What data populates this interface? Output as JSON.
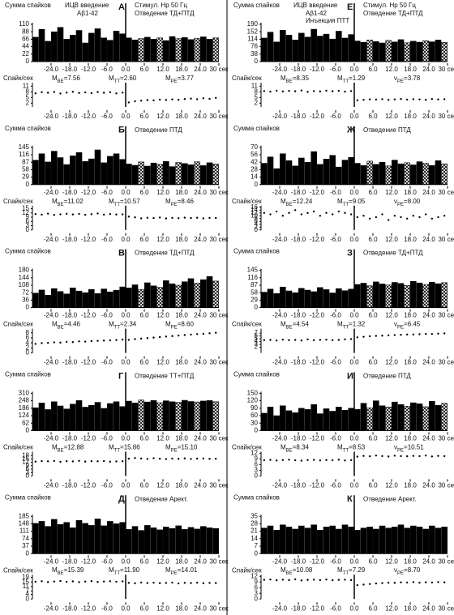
{
  "time_axis": {
    "xlim": [
      -30,
      30
    ],
    "bins": [
      -30,
      -28,
      -26,
      -24,
      -22,
      -20,
      -18,
      -16,
      -14,
      -12,
      -10,
      -8,
      -6,
      -4,
      -2,
      0,
      2,
      4,
      6,
      8,
      10,
      12,
      14,
      16,
      18,
      20,
      22,
      24,
      26,
      28,
      30
    ],
    "points": [
      -29,
      -27,
      -25,
      -23,
      -21,
      -19,
      -17,
      -15,
      -13,
      -11,
      -9,
      -7,
      -5,
      -3,
      -1,
      1,
      3,
      5,
      7,
      9,
      11,
      13,
      15,
      17,
      19,
      21,
      23,
      25,
      27,
      29
    ],
    "xticks": [
      {
        "value": -24,
        "label": "-24.0"
      },
      {
        "value": -18,
        "label": "-18.0"
      },
      {
        "value": -12,
        "label": "-12.0"
      },
      {
        "value": -6,
        "label": "-6.0"
      },
      {
        "value": 0,
        "label": "0.0"
      },
      {
        "value": 6,
        "label": "6.0"
      },
      {
        "value": 12,
        "label": "12.0"
      },
      {
        "value": 18,
        "label": "18.0"
      },
      {
        "value": 24,
        "label": "24.0"
      },
      {
        "value": 30,
        "label": "30 сек"
      }
    ]
  },
  "chart_data": [
    {
      "type": "bar",
      "letter": "А",
      "ylabel": "Сумма спайков",
      "title": "Отведение ТД+ПТД",
      "notes": [
        "ИЦВ введение",
        "Аβ1-42",
        "Стимул. Нр 50 Гц"
      ],
      "color": "#000000",
      "hatch_after_zero": true,
      "ylim": [
        0,
        110
      ],
      "yticks": [
        0,
        22,
        44,
        66,
        88,
        110
      ],
      "values": [
        72,
        95,
        60,
        88,
        101,
        66,
        78,
        92,
        55,
        84,
        97,
        70,
        63,
        90,
        82,
        70,
        64,
        68,
        72,
        66,
        70,
        62,
        74,
        68,
        71,
        65,
        69,
        73,
        66,
        70
      ],
      "rate": {
        "type": "scatter",
        "ylabel": "Спайк/сек",
        "ylim": [
          0,
          12
        ],
        "yticks": [
          2,
          5,
          8,
          11
        ],
        "stats": [
          {
            "name": "M",
            "sub": "BE",
            "text": "=7.56"
          },
          {
            "name": "M",
            "sub": "TT",
            "text": "=2.60"
          },
          {
            "name": "M",
            "sub": "PE",
            "text": "=3.77"
          }
        ],
        "values": [
          7.2,
          7.8,
          7.5,
          7.9,
          7.1,
          7.6,
          8.0,
          7.4,
          7.7,
          7.3,
          7.9,
          7.5,
          7.8,
          7.2,
          7.6,
          2.4,
          3.0,
          3.3,
          3.6,
          3.5,
          3.9,
          3.7,
          4.0,
          3.8,
          4.2,
          4.4,
          4.1,
          4.6,
          4.3,
          4.8
        ]
      }
    },
    {
      "type": "bar",
      "letter": "Б",
      "ylabel": "Сумма спайков",
      "title": "Отведение ПТД",
      "color": "#000000",
      "hatch_after_zero": true,
      "ylim": [
        0,
        145
      ],
      "yticks": [
        0,
        29,
        58,
        87,
        116,
        145
      ],
      "values": [
        95,
        120,
        88,
        130,
        105,
        78,
        112,
        125,
        90,
        100,
        135,
        85,
        110,
        120,
        98,
        80,
        75,
        88,
        72,
        84,
        79,
        90,
        70,
        86,
        82,
        77,
        89,
        74,
        85,
        80
      ],
      "rate": {
        "type": "scatter",
        "ylabel": "Спайк/сек",
        "ylim": [
          0,
          16
        ],
        "yticks": [
          0,
          3,
          6,
          9,
          12,
          15
        ],
        "stats": [
          {
            "name": "M",
            "sub": "BE",
            "text": "=11.02"
          },
          {
            "name": "M",
            "sub": "TT",
            "text": "=10.57"
          },
          {
            "name": "M",
            "sub": "PE",
            "text": "=8.46"
          }
        ],
        "values": [
          11.2,
          10.8,
          11.5,
          10.6,
          11.0,
          11.4,
          10.9,
          11.3,
          10.7,
          11.1,
          11.6,
          10.8,
          11.2,
          10.9,
          11.0,
          9.4,
          8.9,
          8.2,
          8.6,
          8.4,
          8.8,
          8.1,
          8.5,
          8.3,
          8.7,
          8.4,
          8.6,
          8.2,
          8.5,
          8.4
        ]
      }
    },
    {
      "type": "bar",
      "letter": "В",
      "ylabel": "Сумма спайков",
      "title": "Отведение ТД+ПТД",
      "color": "#000000",
      "hatch_after_zero": true,
      "ylim": [
        0,
        180
      ],
      "yticks": [
        0,
        36,
        72,
        108,
        144,
        180
      ],
      "values": [
        70,
        85,
        60,
        92,
        78,
        66,
        95,
        80,
        72,
        88,
        68,
        90,
        76,
        84,
        100,
        95,
        110,
        88,
        120,
        105,
        98,
        130,
        115,
        108,
        125,
        140,
        118,
        135,
        150,
        128
      ],
      "rate": {
        "type": "scatter",
        "ylabel": "Спайк/сек",
        "ylim": [
          0,
          9
        ],
        "yticks": [
          0,
          2,
          4,
          6,
          8
        ],
        "stats": [
          {
            "name": "M",
            "sub": "BE",
            "text": "=4.46"
          },
          {
            "name": "M",
            "sub": "TT",
            "text": "=2.34"
          },
          {
            "name": "M",
            "sub": "PE",
            "text": "=8.60"
          }
        ],
        "values": [
          3.6,
          3.9,
          4.0,
          4.2,
          4.1,
          4.4,
          4.3,
          4.6,
          4.5,
          4.7,
          4.8,
          4.9,
          5.0,
          5.1,
          5.3,
          5.2,
          5.5,
          5.7,
          5.9,
          6.1,
          6.3,
          6.5,
          6.7,
          6.9,
          7.1,
          7.3,
          7.5,
          7.6,
          7.8,
          8.0
        ]
      }
    },
    {
      "type": "bar",
      "letter": "Г",
      "ylabel": "Сумма спайков",
      "title": "Отведение ТТ+ПТД",
      "color": "#000000",
      "hatch_after_zero": true,
      "ylim": [
        0,
        310
      ],
      "yticks": [
        0,
        62,
        124,
        186,
        248,
        310
      ],
      "values": [
        190,
        230,
        175,
        240,
        205,
        180,
        220,
        250,
        195,
        210,
        235,
        185,
        225,
        240,
        200,
        245,
        230,
        255,
        238,
        250,
        232,
        248,
        240,
        235,
        252,
        242,
        238,
        246,
        250,
        240
      ],
      "rate": {
        "type": "scatter",
        "ylabel": "Спайк/сек",
        "ylim": [
          0,
          20
        ],
        "yticks": [
          0,
          3,
          6,
          9,
          12,
          15,
          18
        ],
        "stats": [
          {
            "name": "M",
            "sub": "BE",
            "text": "=12.88"
          },
          {
            "name": "M",
            "sub": "TT",
            "text": "=15.86"
          },
          {
            "name": "M",
            "sub": "PE",
            "text": "=15.10"
          }
        ],
        "values": [
          12.6,
          13.1,
          12.9,
          13.2,
          12.5,
          13.0,
          12.8,
          13.3,
          12.7,
          13.0,
          12.9,
          13.1,
          12.6,
          12.8,
          13.0,
          15.2,
          15.8,
          15.4,
          15.0,
          15.6,
          15.2,
          14.9,
          15.3,
          15.1,
          15.5,
          15.0,
          15.3,
          15.4,
          15.1,
          15.2
        ]
      }
    },
    {
      "type": "bar",
      "letter": "Д",
      "ylabel": "Сумма спайков",
      "title": "Отведение Арект.",
      "color": "#000000",
      "hatch_after_zero": false,
      "ylim": [
        0,
        185
      ],
      "yticks": [
        0,
        37,
        74,
        111,
        148,
        185
      ],
      "values": [
        150,
        160,
        135,
        170,
        145,
        155,
        128,
        165,
        150,
        140,
        172,
        138,
        160,
        148,
        155,
        120,
        135,
        115,
        140,
        128,
        118,
        132,
        125,
        138,
        120,
        130,
        122,
        135,
        128,
        125
      ],
      "rate": {
        "type": "scatter",
        "ylabel": "Спайк/сек",
        "ylim": [
          0,
          20
        ],
        "yticks": [
          0,
          4,
          7,
          11,
          15,
          19
        ],
        "stats": [
          {
            "name": "M",
            "sub": "BE",
            "text": "=15.39"
          },
          {
            "name": "M",
            "sub": "TT",
            "text": "=11.90"
          },
          {
            "name": "M",
            "sub": "PE",
            "text": "=14.01"
          }
        ],
        "values": [
          15.2,
          15.6,
          14.9,
          15.4,
          15.8,
          15.1,
          15.5,
          14.8,
          15.3,
          15.7,
          15.0,
          15.4,
          15.6,
          15.2,
          15.5,
          14.2,
          13.8,
          14.5,
          14.0,
          14.3,
          13.9,
          14.1,
          14.4,
          13.7,
          14.2,
          14.0,
          14.3,
          13.9,
          14.1,
          14.0
        ]
      }
    },
    {
      "type": "bar",
      "letter": "Е",
      "ylabel": "Сумма спайков",
      "title": "Отведение ТД+ПТД",
      "notes": [
        "ИЦВ введение",
        "Аβ1-42",
        "Стимул. Нр 50 Гц",
        "Инъекция ПТТ"
      ],
      "color": "#000000",
      "hatch_after_zero": true,
      "ylim": [
        0,
        190
      ],
      "yticks": [
        0,
        38,
        76,
        114,
        152,
        190
      ],
      "values": [
        120,
        150,
        100,
        160,
        135,
        110,
        145,
        125,
        165,
        130,
        140,
        115,
        155,
        120,
        138,
        105,
        98,
        110,
        102,
        95,
        108,
        100,
        112,
        96,
        104,
        99,
        107,
        101,
        110,
        98
      ],
      "rate": {
        "type": "scatter",
        "ylabel": "Спайк/сек",
        "ylim": [
          0,
          12
        ],
        "yticks": [
          2,
          5,
          8,
          11
        ],
        "stats": [
          {
            "name": "M",
            "sub": "BE",
            "text": "=8.35"
          },
          {
            "name": "M",
            "sub": "TT",
            "text": "=1.29"
          },
          {
            "name": "ν",
            "sub": "PE",
            "text": "=3.78"
          }
        ],
        "values": [
          8.4,
          8.1,
          8.6,
          8.2,
          8.5,
          8.3,
          8.7,
          8.0,
          8.4,
          8.2,
          8.6,
          8.3,
          8.5,
          8.1,
          8.4,
          3.5,
          3.8,
          4.0,
          3.9,
          4.1,
          3.8,
          4.0,
          4.2,
          3.9,
          4.1,
          4.0,
          3.8,
          4.2,
          4.0,
          4.1
        ]
      }
    },
    {
      "type": "bar",
      "letter": "Ж",
      "ylabel": "Сумма спайков",
      "title": "Отведение ПТД",
      "color": "#000000",
      "hatch_after_zero": true,
      "ylim": [
        0,
        70
      ],
      "yticks": [
        0,
        14,
        28,
        42,
        56,
        70
      ],
      "values": [
        40,
        52,
        30,
        58,
        45,
        35,
        50,
        42,
        62,
        38,
        48,
        55,
        33,
        46,
        51,
        40,
        36,
        44,
        38,
        42,
        35,
        46,
        39,
        41,
        37,
        43,
        40,
        36,
        45,
        39
      ],
      "rate": {
        "type": "scatter",
        "ylabel": "Спайк/сек",
        "ylim": [
          0,
          16
        ],
        "yticks": [
          0,
          2,
          4,
          6,
          8,
          10,
          12,
          14,
          16
        ],
        "stats": [
          {
            "name": "M",
            "sub": "BE",
            "text": "=12.24"
          },
          {
            "name": "M",
            "sub": "TT",
            "text": "=9.05"
          },
          {
            "name": "ν",
            "sub": "PE",
            "text": "=8.00"
          }
        ],
        "values": [
          12,
          11,
          13,
          10,
          12,
          14,
          11,
          12,
          13,
          10,
          12,
          11,
          13,
          12,
          11,
          9,
          10,
          8,
          9,
          11,
          7,
          10,
          9,
          8,
          10,
          9,
          11,
          8,
          9,
          10
        ]
      }
    },
    {
      "type": "bar",
      "letter": "З",
      "ylabel": "Сумма спайков",
      "title": "Отведение ТД+ПТД",
      "color": "#000000",
      "hatch_after_zero": true,
      "ylim": [
        0,
        145
      ],
      "yticks": [
        0,
        29,
        58,
        87,
        116,
        145
      ],
      "values": [
        60,
        72,
        55,
        80,
        65,
        58,
        75,
        68,
        62,
        78,
        70,
        57,
        74,
        66,
        72,
        90,
        95,
        85,
        100,
        92,
        88,
        98,
        94,
        86,
        102,
        96,
        90,
        99,
        93,
        97
      ],
      "rate": {
        "type": "scatter",
        "ylabel": "Спайк/сек",
        "ylim": [
          0,
          8
        ],
        "yticks": [
          2,
          3,
          4,
          5,
          6,
          7
        ],
        "stats": [
          {
            "name": "M",
            "sub": "BE",
            "text": "=4.54"
          },
          {
            "name": "M",
            "sub": "TT",
            "text": "=1.32"
          },
          {
            "name": "ν",
            "sub": "PE",
            "text": "=6.45"
          }
        ],
        "values": [
          4.5,
          4.6,
          4.4,
          4.7,
          4.5,
          4.6,
          4.4,
          4.8,
          4.5,
          4.6,
          4.7,
          4.5,
          4.6,
          4.8,
          4.9,
          5.5,
          5.7,
          5.9,
          6.0,
          6.1,
          6.2,
          6.3,
          6.4,
          6.5,
          6.5,
          6.6,
          6.7,
          6.7,
          6.8,
          6.9
        ]
      }
    },
    {
      "type": "bar",
      "letter": "И",
      "ylabel": "Сумма спайков",
      "title": "Отведение ПТД",
      "color": "#000000",
      "hatch_after_zero": true,
      "ylim": [
        0,
        150
      ],
      "yticks": [
        0,
        30,
        60,
        90,
        120,
        150
      ],
      "values": [
        70,
        95,
        60,
        100,
        80,
        72,
        90,
        85,
        105,
        68,
        88,
        78,
        95,
        82,
        90,
        85,
        110,
        92,
        120,
        100,
        95,
        115,
        105,
        98,
        112,
        108,
        96,
        118,
        102,
        110
      ],
      "rate": {
        "type": "scatter",
        "ylabel": "Спайк/сек",
        "ylim": [
          0,
          12
        ],
        "yticks": [
          0,
          3,
          6,
          9,
          12
        ],
        "stats": [
          {
            "name": "M",
            "sub": "BE",
            "text": "=8.34"
          },
          {
            "name": "M",
            "sub": "TT",
            "text": "=8.53"
          },
          {
            "name": "ν",
            "sub": "PE",
            "text": "=10.51"
          }
        ],
        "values": [
          8.3,
          8.5,
          8.2,
          8.4,
          8.6,
          8.3,
          8.1,
          8.4,
          8.5,
          8.2,
          8.4,
          8.3,
          8.6,
          8.2,
          8.4,
          10.2,
          10.6,
          10.4,
          10.8,
          10.5,
          10.3,
          10.7,
          10.5,
          10.4,
          10.6,
          10.5,
          10.8,
          10.3,
          10.6,
          10.5
        ]
      }
    },
    {
      "type": "bar",
      "letter": "К",
      "ylabel": "Сумма спайков",
      "title": "Отведение Арект.",
      "color": "#000000",
      "hatch_after_zero": false,
      "ylim": [
        0,
        35
      ],
      "yticks": [
        0,
        7,
        14,
        21,
        28,
        35
      ],
      "values": [
        24,
        26,
        22,
        27,
        25,
        23,
        26,
        24,
        27,
        22,
        25,
        26,
        23,
        27,
        25,
        22,
        24,
        25,
        23,
        26,
        24,
        25,
        27,
        24,
        26,
        25,
        23,
        26,
        24,
        25
      ],
      "rate": {
        "type": "scatter",
        "ylabel": "Спайк/сек",
        "ylim": [
          0,
          12
        ],
        "yticks": [
          0,
          3,
          6,
          9,
          12
        ],
        "stats": [
          {
            "name": "M",
            "sub": "BE",
            "text": "=10.08"
          },
          {
            "name": "M",
            "sub": "TT",
            "text": "=7.29"
          },
          {
            "name": "ν",
            "sub": "PE",
            "text": "=8.70"
          }
        ],
        "values": [
          10.1,
          10.3,
          9.9,
          10.2,
          10.0,
          10.4,
          9.8,
          10.1,
          10.2,
          10.0,
          10.3,
          9.9,
          10.1,
          10.2,
          10.0,
          7.3,
          7.6,
          7.9,
          8.2,
          8.4,
          8.6,
          8.5,
          8.8,
          8.7,
          8.9,
          8.6,
          8.8,
          8.7,
          8.9,
          8.8
        ]
      }
    }
  ]
}
